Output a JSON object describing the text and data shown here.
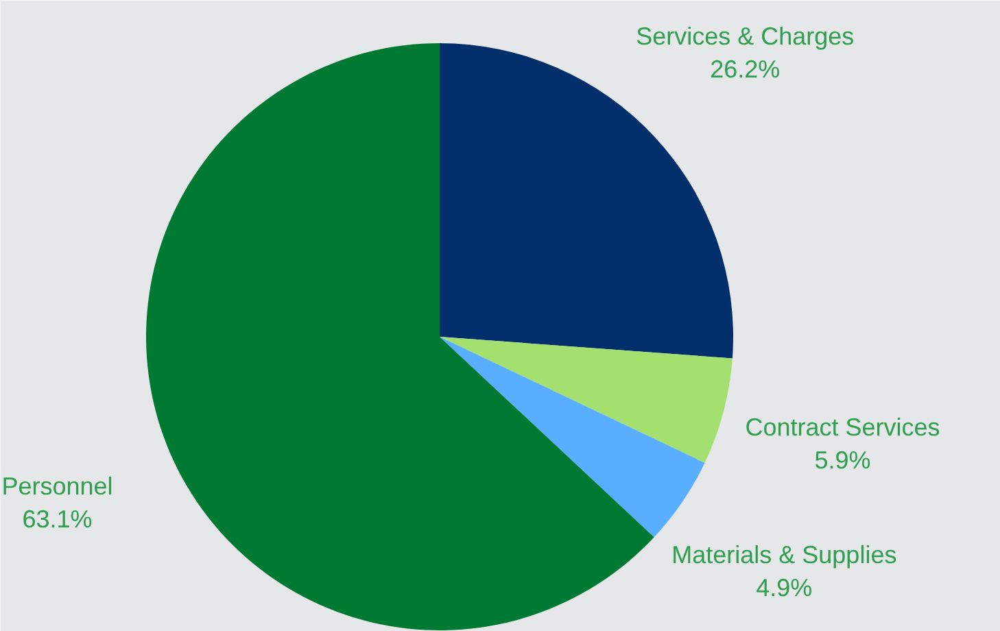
{
  "chart_data": {
    "type": "pie",
    "categories": [
      "Services & Charges",
      "Contract Services",
      "Materials & Supplies",
      "Personnel"
    ],
    "values": [
      26.2,
      5.9,
      4.9,
      63.1
    ],
    "colors": [
      "#002f6c",
      "#a3e070",
      "#5aaeff",
      "#007a33"
    ],
    "value_labels": [
      "26.2%",
      "5.9%",
      "4.9%",
      "63.1%"
    ]
  }
}
